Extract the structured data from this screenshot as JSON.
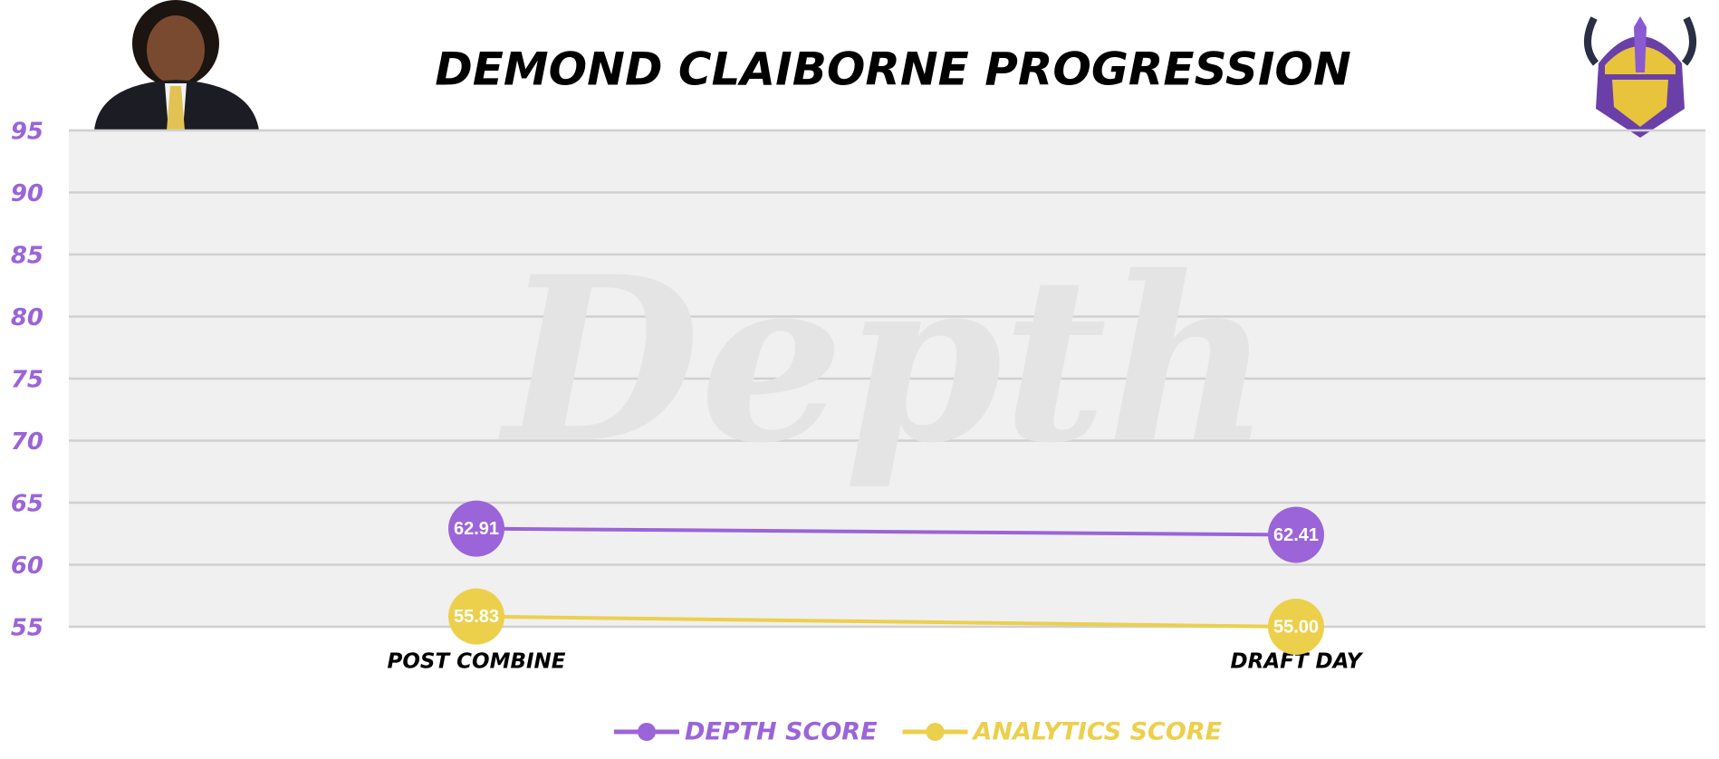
{
  "chart_data": {
    "type": "line",
    "title": "DEMOND CLAIBORNE PROGRESSION",
    "watermark": "Depth",
    "categories": [
      "POST COMBINE",
      "DRAFT DAY"
    ],
    "series": [
      {
        "name": "DEPTH SCORE",
        "color": "#9b64d8",
        "values": [
          62.91,
          62.41
        ],
        "value_labels": [
          "62.91",
          "62.41"
        ]
      },
      {
        "name": "ANALYTICS SCORE",
        "color": "#ecd04c",
        "values": [
          55.83,
          55
        ],
        "value_labels": [
          "55.83",
          "55.00"
        ]
      }
    ],
    "ylim": [
      55,
      95
    ],
    "yticks": [
      55,
      60,
      65,
      70,
      75,
      80,
      85,
      90,
      95
    ],
    "grid": true,
    "legend": "bottom"
  }
}
